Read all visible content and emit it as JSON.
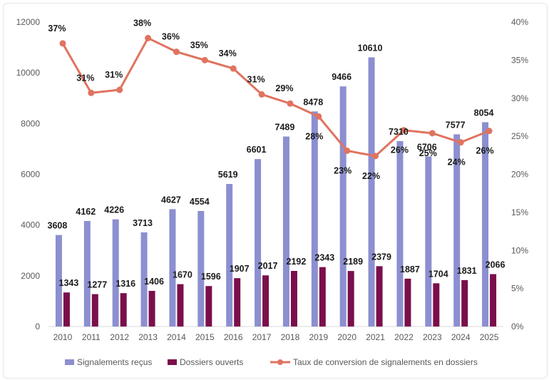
{
  "chart_data": {
    "type": "bar",
    "categories": [
      "2010",
      "2011",
      "2012",
      "2013",
      "2014",
      "2015",
      "2016",
      "2017",
      "2018",
      "2019",
      "2020",
      "2021",
      "2022",
      "2023",
      "2024",
      "2025"
    ],
    "series": [
      {
        "name": "Signalements reçus",
        "kind": "bar",
        "axis": "left",
        "color": "#8c8fd0",
        "values": [
          3608,
          4162,
          4226,
          3713,
          4627,
          4554,
          5619,
          6601,
          7489,
          8478,
          9466,
          10610,
          7310,
          6706,
          7577,
          8054
        ]
      },
      {
        "name": "Dossiers ouverts",
        "kind": "bar",
        "axis": "left",
        "color": "#7a0f4b",
        "values": [
          1343,
          1277,
          1316,
          1406,
          1670,
          1596,
          1907,
          2017,
          2192,
          2343,
          2189,
          2379,
          1887,
          1704,
          1831,
          2066
        ]
      },
      {
        "name": "Taux de conversion de signalements en dossiers",
        "kind": "line",
        "axis": "right",
        "color": "#e0735f",
        "values": [
          37.2,
          30.7,
          31.1,
          37.9,
          36.1,
          35.0,
          33.9,
          30.5,
          29.3,
          27.6,
          23.1,
          22.4,
          25.8,
          25.4,
          24.2,
          25.7
        ],
        "labels": [
          "37%",
          "31%",
          "31%",
          "38%",
          "36%",
          "35%",
          "34%",
          "31%",
          "29%",
          "28%",
          "23%",
          "22%",
          "26%",
          "25%",
          "24%",
          "26%"
        ]
      }
    ],
    "y_left": {
      "min": 0,
      "max": 12000,
      "ticks": [
        "0",
        "2000",
        "4000",
        "6000",
        "8000",
        "10000",
        "12000"
      ]
    },
    "y_right": {
      "min": 0,
      "max": 40,
      "ticks": [
        "0%",
        "5%",
        "10%",
        "15%",
        "20%",
        "25%",
        "30%",
        "35%",
        "40%"
      ]
    },
    "xlabel": "",
    "ylabel": "",
    "title": "",
    "grid": false,
    "legend_position": "bottom"
  }
}
